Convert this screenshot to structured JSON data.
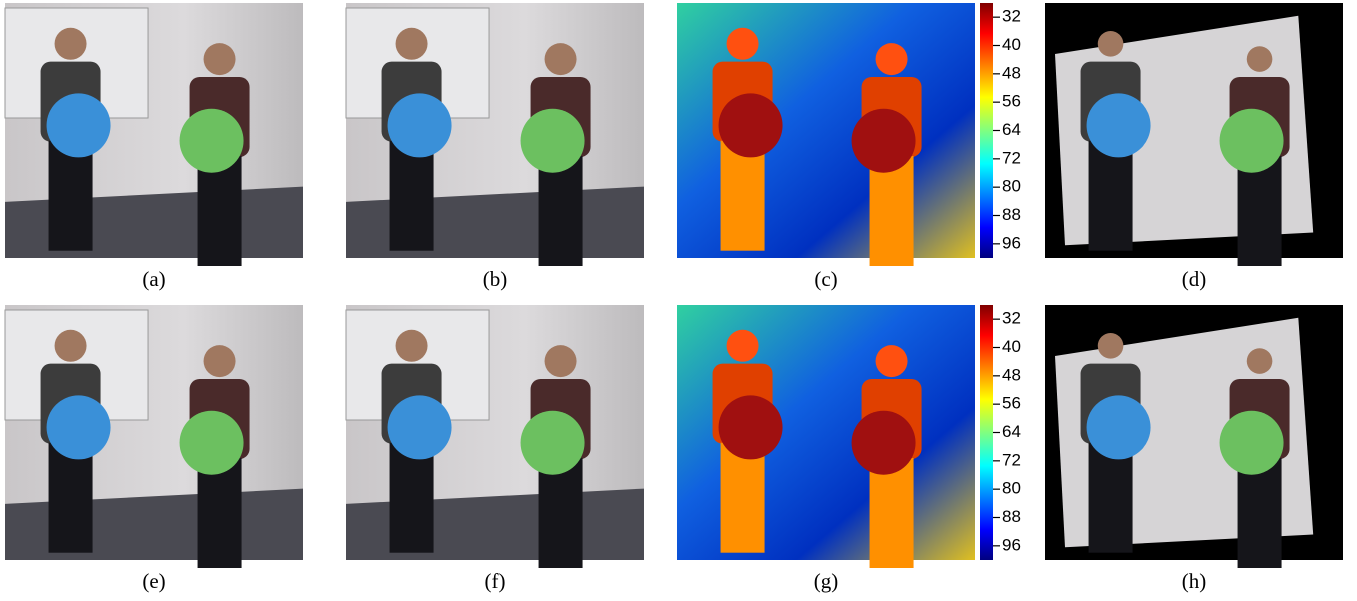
{
  "panels": [
    {
      "label": "(a)"
    },
    {
      "label": "(b)"
    },
    {
      "label": "(c)"
    },
    {
      "label": "(d)"
    },
    {
      "label": "(e)"
    },
    {
      "label": "(f)"
    },
    {
      "label": "(g)"
    },
    {
      "label": "(h)"
    }
  ],
  "colorbars": [
    {
      "lim": [
        28,
        100
      ],
      "ticks": [
        32,
        40,
        48,
        56,
        64,
        72,
        80,
        88,
        96
      ]
    },
    {
      "lim": [
        28,
        100
      ],
      "ticks": [
        32,
        40,
        48,
        56,
        64,
        72,
        80,
        88,
        96
      ]
    }
  ]
}
